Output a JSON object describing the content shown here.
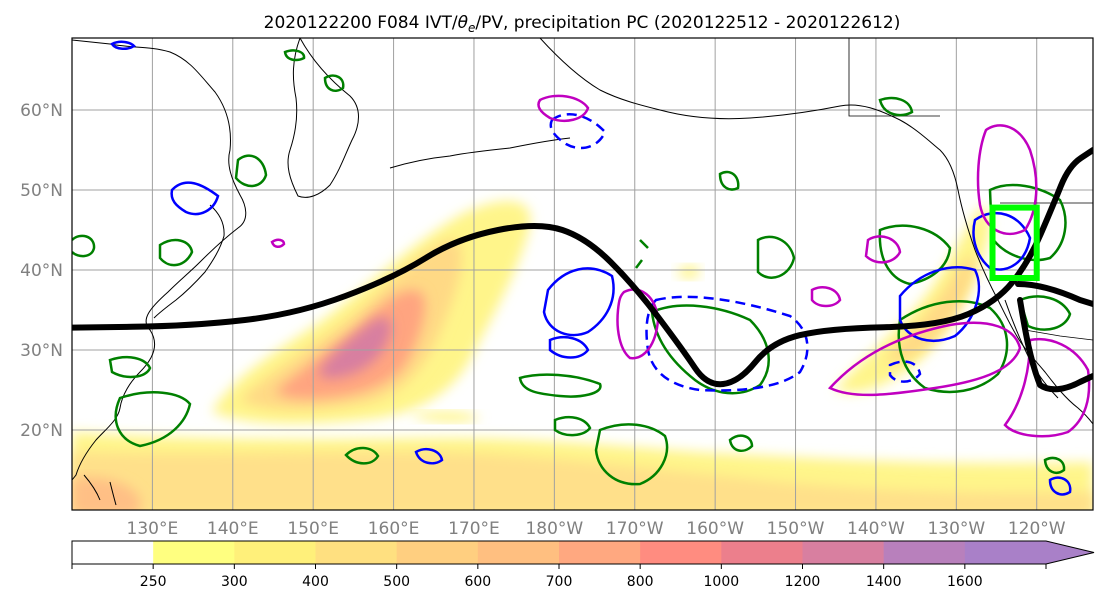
{
  "chart_data": {
    "type": "heatmap",
    "title": "2020122200 F084 IVT/θe/PV, precipitation PC (2020122512 - 2020122612)",
    "title_parts": {
      "prefix": "2020122200 F084 IVT/",
      "theta": "θ",
      "theta_sub": "e",
      "suffix": "/PV, precipitation PC (2020122512 - 2020122612)"
    },
    "x_ticks": [
      "130°E",
      "140°E",
      "150°E",
      "160°E",
      "170°E",
      "180°W",
      "170°W",
      "160°W",
      "150°W",
      "140°W",
      "130°W",
      "120°W"
    ],
    "x_tick_lon": [
      130,
      140,
      150,
      160,
      170,
      180,
      190,
      200,
      210,
      220,
      230,
      240
    ],
    "y_ticks": [
      "20°N",
      "30°N",
      "40°N",
      "50°N",
      "60°N"
    ],
    "y_tick_lat": [
      20,
      30,
      40,
      50,
      60
    ],
    "lon_range": [
      120,
      247
    ],
    "lat_range": [
      10,
      69
    ],
    "grid": true,
    "colorbar": {
      "levels": [
        250,
        300,
        400,
        500,
        600,
        700,
        800,
        1000,
        1200,
        1400,
        1600
      ],
      "labels": [
        "250",
        "300",
        "400",
        "500",
        "600",
        "700",
        "800",
        "1000",
        "1200",
        "1400",
        "1600"
      ],
      "colors": [
        "#ffffff",
        "#ffff80",
        "#fff07a",
        "#ffe080",
        "#ffcf80",
        "#ffbf80",
        "#ffa880",
        "#ff8c80",
        "#ec7f8c",
        "#d87fa0",
        "#b880bc",
        "#a980c8"
      ],
      "extend": "max"
    },
    "ivt_band": {
      "axis_points": [
        [
          140,
          25
        ],
        [
          150,
          28
        ],
        [
          158,
          33
        ],
        [
          163,
          37
        ],
        [
          168,
          41
        ],
        [
          175,
          45
        ]
      ],
      "core_max": 1400
    },
    "theta_e_line": {
      "color": "#000000",
      "points": [
        [
          120,
          32.8
        ],
        [
          135,
          33
        ],
        [
          148,
          34.5
        ],
        [
          160,
          39
        ],
        [
          168,
          44
        ],
        [
          178,
          46
        ],
        [
          184,
          44
        ],
        [
          190,
          38
        ],
        [
          196,
          30
        ],
        [
          199,
          25.5
        ],
        [
          203,
          26
        ],
        [
          207,
          31
        ],
        [
          214,
          32.7
        ],
        [
          228,
          33
        ],
        [
          235,
          36
        ],
        [
          239,
          41
        ],
        [
          242,
          48
        ],
        [
          244,
          53
        ],
        [
          247,
          55
        ]
      ]
    },
    "target_box": {
      "color": "#00ff00",
      "lon": [
        234.5,
        240
      ],
      "lat": [
        39,
        47.8
      ]
    },
    "precip_pc_color": "#008000",
    "pv_color_positive": "#0000ff",
    "pv_color_other": "#c000c0"
  }
}
